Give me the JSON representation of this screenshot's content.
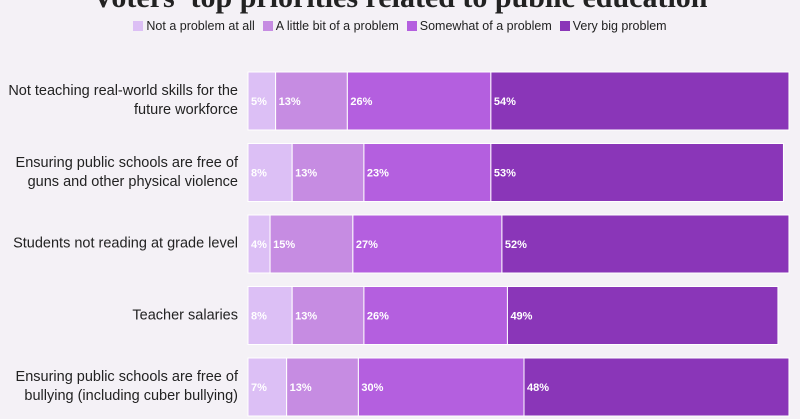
{
  "chart_data": {
    "type": "stacked-bar-horizontal",
    "title": "Voters' top priorities related to public education",
    "categories": [
      "Not teaching real-world skills for the future workforce",
      "Ensuring public schools are free of guns and other physical violence",
      "Students not reading at grade level",
      "Teacher salaries",
      "Ensuring public schools are free of bullying (including cuber bullying)"
    ],
    "series": [
      {
        "name": "Not a problem at all",
        "color": "#dcbff5",
        "values": [
          5,
          8,
          4,
          8,
          7
        ],
        "value_labels": [
          "5%",
          "8%",
          "4%",
          "8%",
          "7%"
        ]
      },
      {
        "name": "A little bit of a problem",
        "color": "#c68ce2",
        "values": [
          13,
          13,
          15,
          13,
          13
        ],
        "value_labels": [
          "13%",
          "13%",
          "15%",
          "13%",
          "13%"
        ]
      },
      {
        "name": "Somewhat of a problem",
        "color": "#b45fdf",
        "values": [
          26,
          23,
          27,
          26,
          30
        ],
        "value_labels": [
          "26%",
          "23%",
          "27%",
          "26%",
          "30%"
        ]
      },
      {
        "name": "Very big problem",
        "color": "#8a36b8",
        "values": [
          54,
          53,
          52,
          49,
          48
        ],
        "value_labels": [
          "54%",
          "53%",
          "52%",
          "49%",
          "48%"
        ]
      }
    ],
    "xlim": [
      0,
      100
    ]
  }
}
